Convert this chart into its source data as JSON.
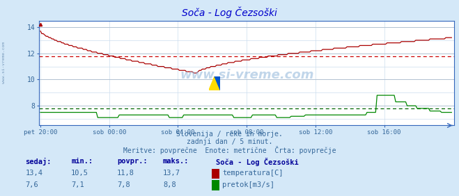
{
  "title": "Soča - Log Čezsoški",
  "title_color": "#0000cc",
  "bg_color": "#d4e8f8",
  "plot_bg_color": "#ffffff",
  "grid_color_light": "#ccddee",
  "grid_color_dark": "#aabbcc",
  "text_color": "#336699",
  "bold_text_color": "#000099",
  "temp_color": "#aa0000",
  "flow_color": "#008800",
  "avg_temp_color": "#cc0000",
  "avg_flow_color": "#006600",
  "axis_color": "#3366bb",
  "avg_temp": 11.8,
  "avg_flow": 7.8,
  "ylim": [
    6.5,
    14.5
  ],
  "yticks": [
    8,
    10,
    12,
    14
  ],
  "n_points": 288,
  "x_tick_labels": [
    "pet 20:00",
    "sob 00:00",
    "sob 04:00",
    "sob 08:00",
    "sob 12:00",
    "sob 16:00"
  ],
  "x_tick_positions": [
    0,
    48,
    96,
    144,
    192,
    240
  ],
  "subtitle1": "Slovenija / reke in morje.",
  "subtitle2": "zadnji dan / 5 minut.",
  "subtitle3": "Meritve: povprečne  Enote: metrične  Črta: povprečje",
  "table_headers": [
    "sedaj:",
    "min.:",
    "povpr.:",
    "maks.:"
  ],
  "table_label": "Soča - Log Čezsoški",
  "temp_row": [
    "13,4",
    "10,5",
    "11,8",
    "13,7"
  ],
  "flow_row": [
    "7,6",
    "7,1",
    "7,8",
    "8,8"
  ],
  "temp_label": "temperatura[C]",
  "flow_label": "pretok[m3/s]",
  "watermark": "www.si-vreme.com",
  "left_label": "www.si-vreme.com"
}
